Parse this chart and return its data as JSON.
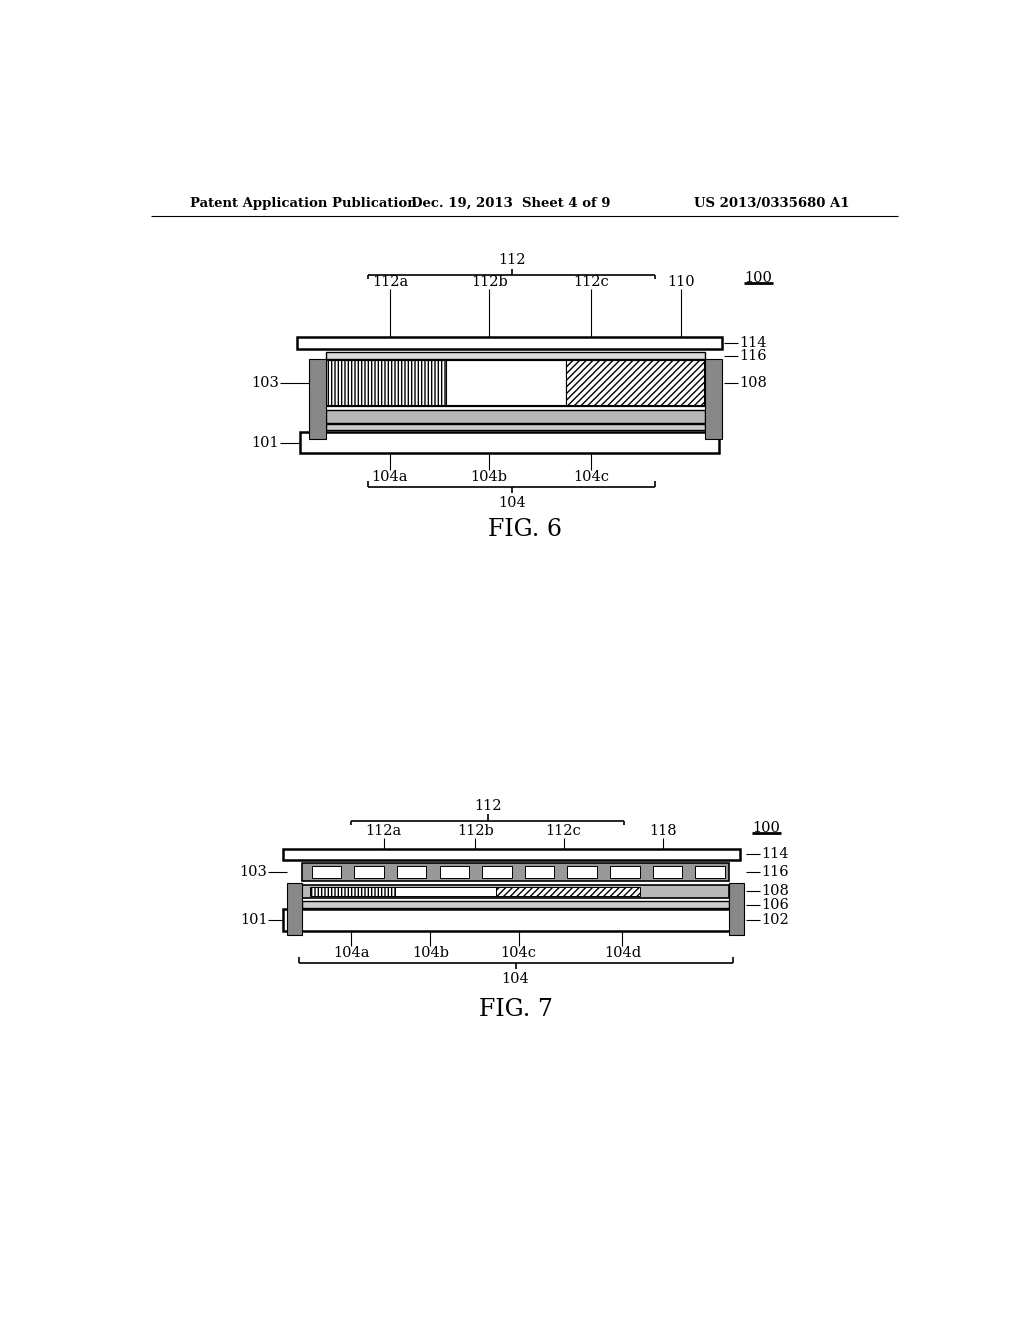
{
  "background_color": "#ffffff",
  "header_left": "Patent Application Publication",
  "header_center": "Dec. 19, 2013  Sheet 4 of 9",
  "header_right": "US 2013/0335680 A1",
  "fig6_label": "FIG. 6",
  "fig7_label": "FIG. 7"
}
